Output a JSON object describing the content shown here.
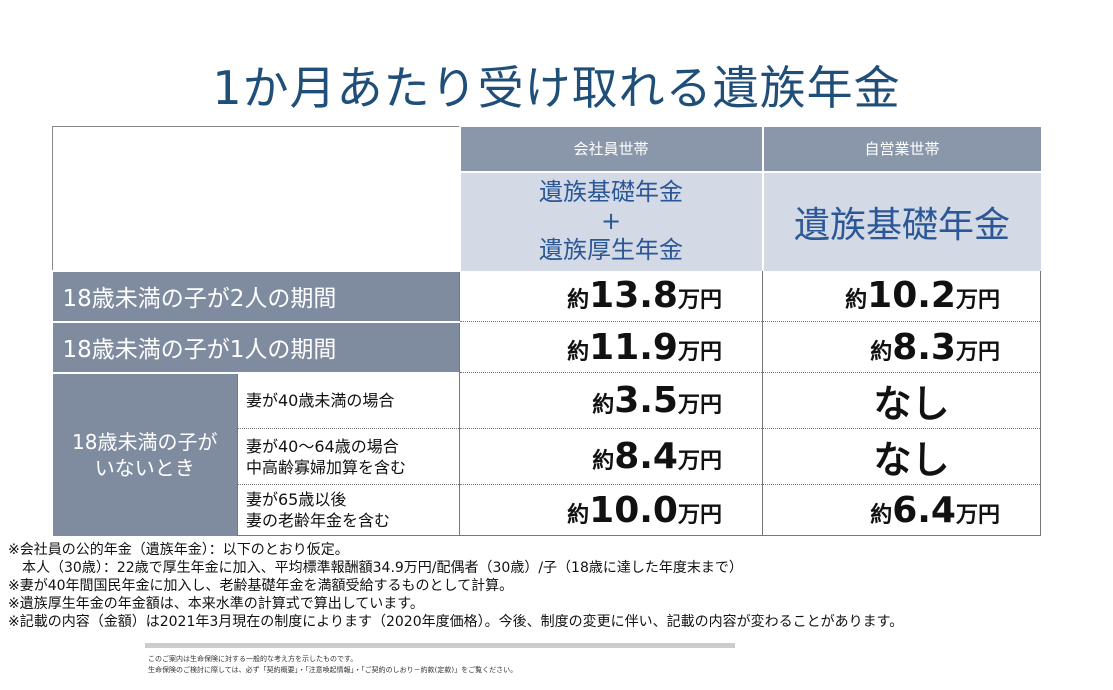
{
  "title": "1か月あたり受け取れる遺族年金",
  "columns": {
    "company": "会社員世帯",
    "self_employed": "自営業世帯"
  },
  "subheaders": {
    "company_line1": "遺族基礎年金",
    "company_plus": "+",
    "company_line2": "遺族厚生年金",
    "self_employed": "遺族基礎年金"
  },
  "rows": [
    {
      "label": "18歳未満の子が2人の期間",
      "company": {
        "pre": "約",
        "num": "13.8",
        "post": "万円"
      },
      "self": {
        "pre": "約",
        "num": "10.2",
        "post": "万円"
      }
    },
    {
      "label": "18歳未満の子が1人の期間",
      "company": {
        "pre": "約",
        "num": "11.9",
        "post": "万円"
      },
      "self": {
        "pre": "約",
        "num": "8.3",
        "post": "万円"
      }
    }
  ],
  "no_kids": {
    "line1": "18歳未満の子が",
    "line2": "いないとき",
    "subrows": [
      {
        "line1": "妻が40歳未満の場合",
        "line2": "",
        "company": {
          "pre": "約",
          "num": "3.5",
          "post": "万円"
        },
        "self_none": "なし"
      },
      {
        "line1": "妻が40～64歳の場合",
        "line2": "中高齢寡婦加算を含む",
        "company": {
          "pre": "約",
          "num": "8.4",
          "post": "万円"
        },
        "self_none": "なし"
      },
      {
        "line1": "妻が65歳以後",
        "line2": "妻の老齢年金を含む",
        "company": {
          "pre": "約",
          "num": "10.0",
          "post": "万円"
        },
        "self": {
          "pre": "約",
          "num": "6.4",
          "post": "万円"
        }
      }
    ]
  },
  "notes": [
    "※会社員の公的年金（遺族年金）：以下のとおり仮定。",
    "本人（30歳）：22歳で厚生年金に加入、平均標準報酬額34.9万円/配偶者（30歳）/子（18歳に達した年度末まで）",
    "※妻が40年間国民年金に加入し、老齢基礎年金を満額受給するものとして計算。",
    "※遺族厚生年金の年金額は、本来水準の計算式で算出しています。",
    "※記載の内容（金額）は2021年3月現在の制度によります（2020年度価格）。今後、制度の変更に伴い、記載の内容が変わることがあります。"
  ],
  "footer": {
    "line1": "このご案内は生命保険に対する一般的な考え方を示したものです。",
    "line2": "生命保険のご検討に際しては、必ず「契約概要」・「注意喚起情報」・「ご契約のしおり－約款(定款)」をご覧ください。"
  }
}
